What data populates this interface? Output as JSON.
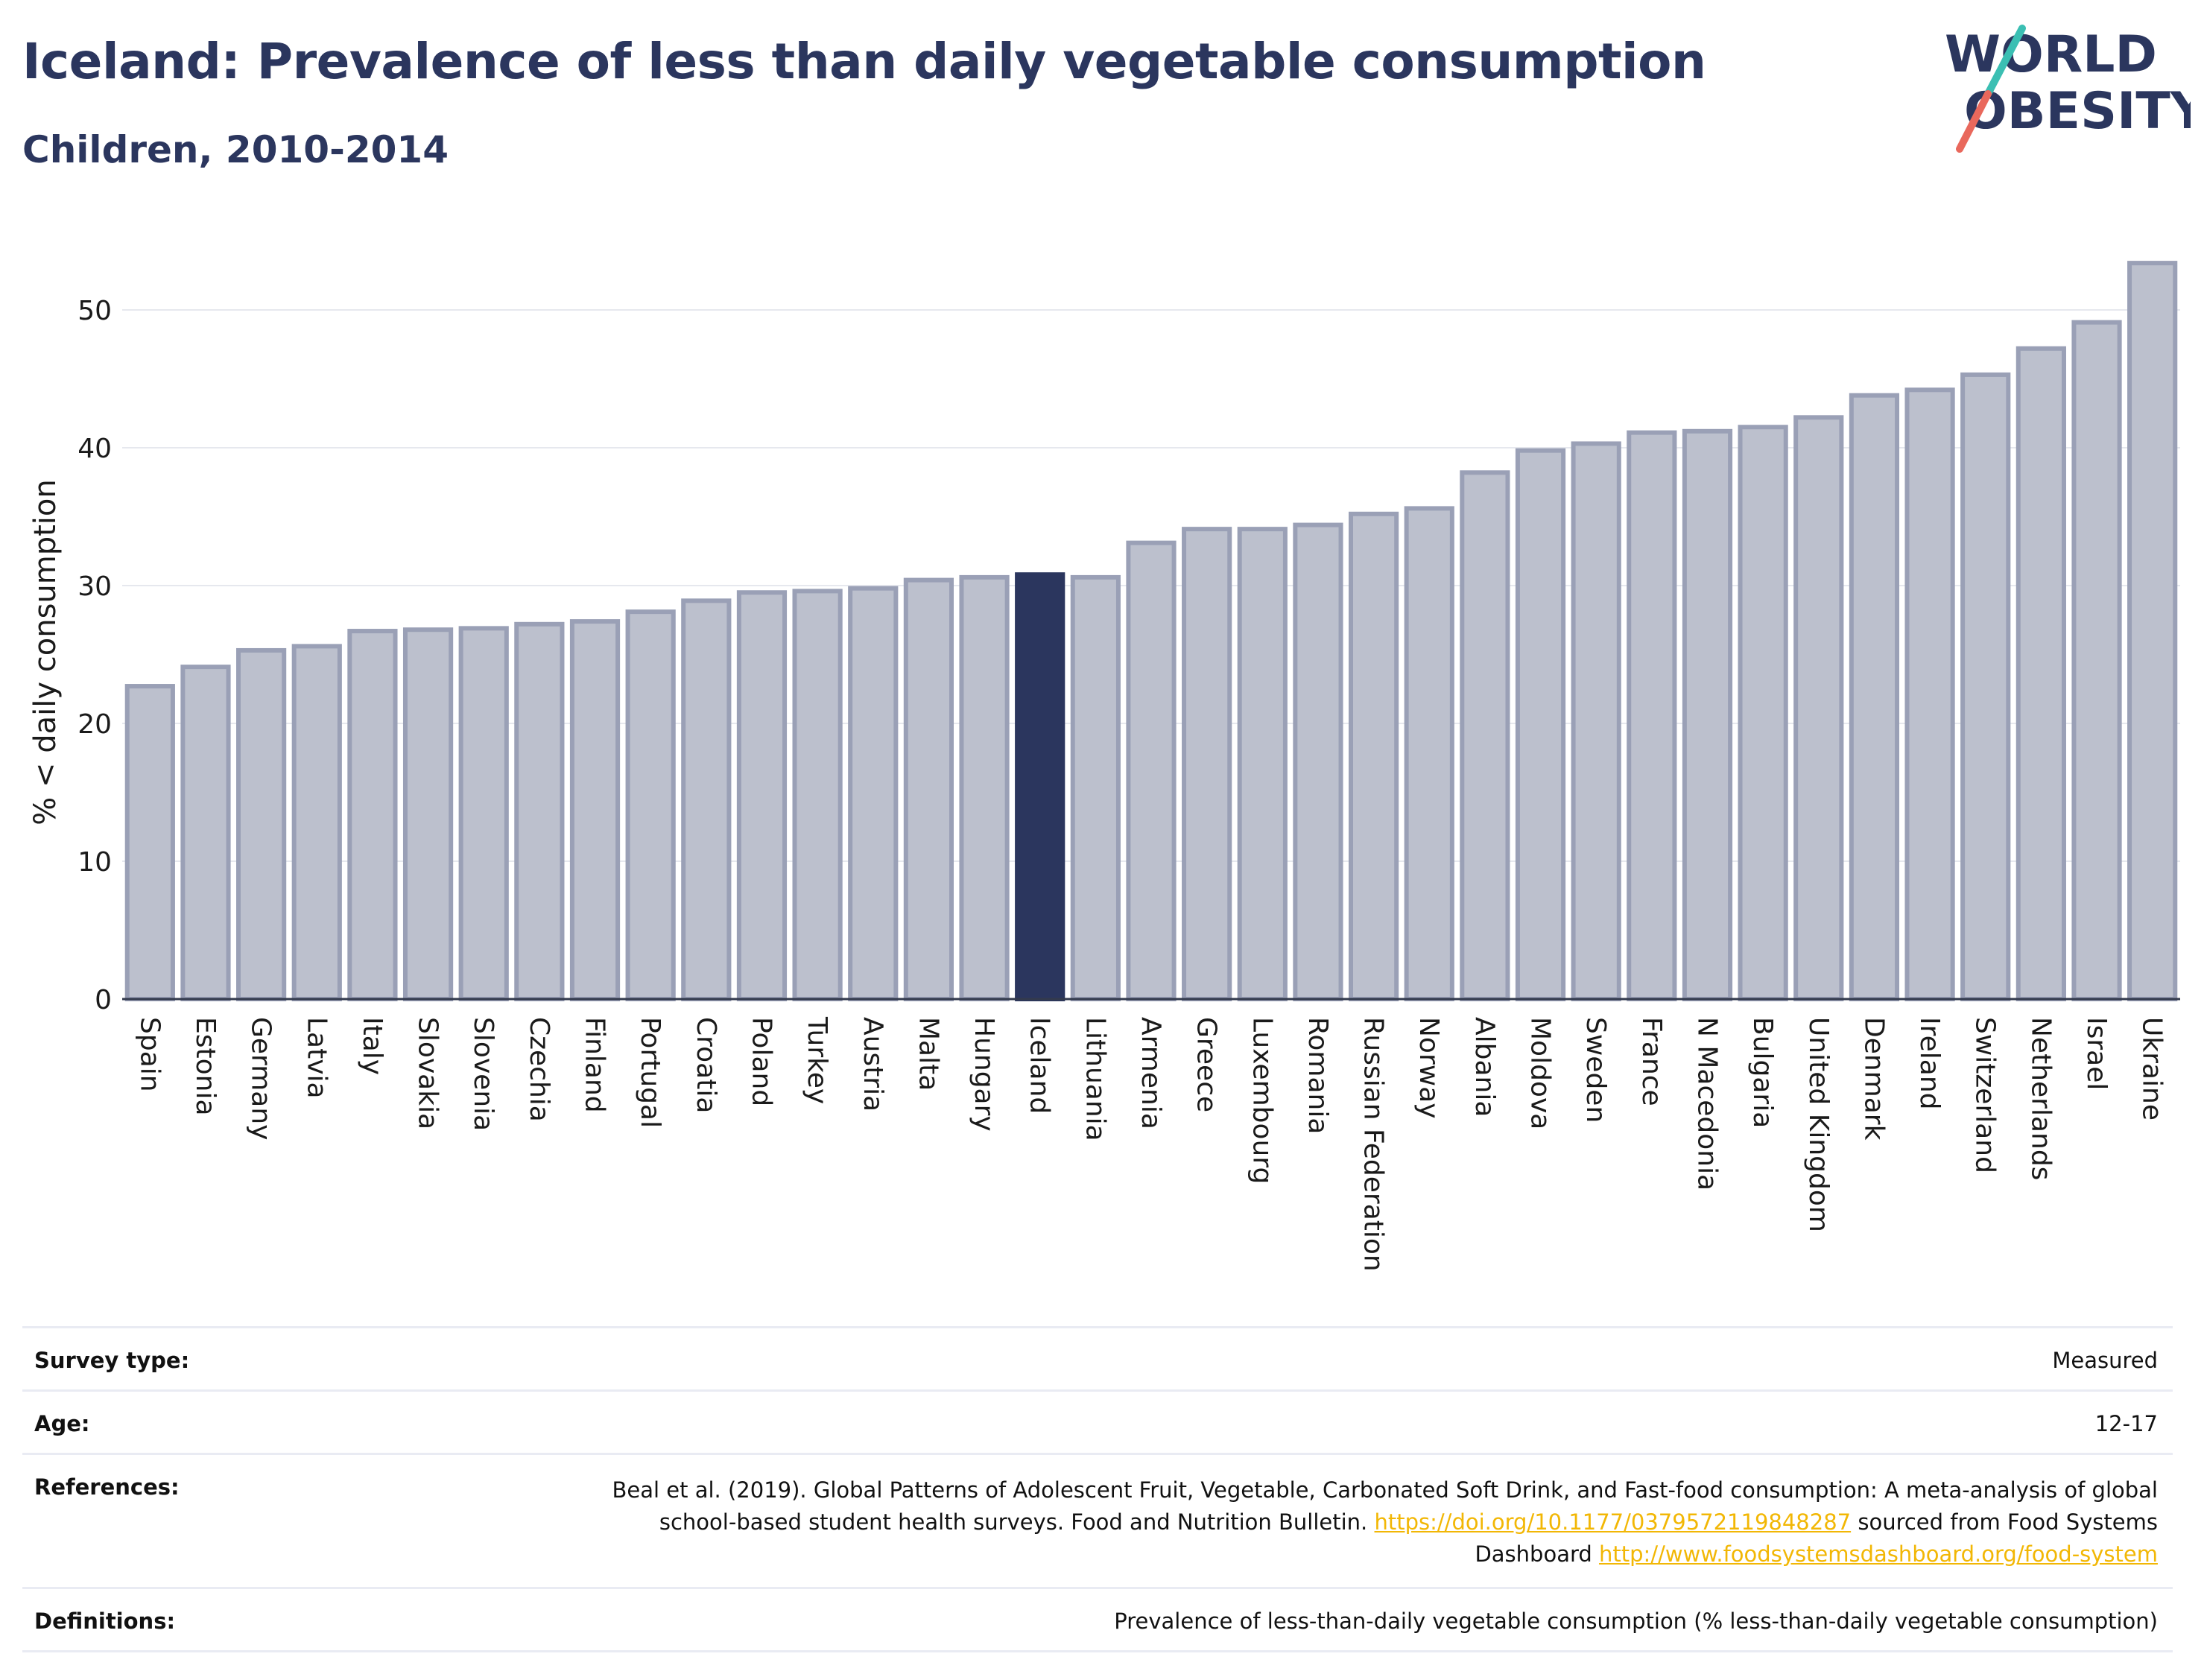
{
  "header": {
    "title": "Iceland: Prevalence of less than daily vegetable consumption",
    "subtitle": "Children, 2010-2014"
  },
  "logo": {
    "line1": "WORLD",
    "line2": "OBESITY",
    "slash_color_top": "#3bbfb3",
    "slash_color_bottom": "#e9685c"
  },
  "colors": {
    "bar": "#bcc0cd",
    "bar_stroke": "#9aa0b6",
    "highlight": "#2b365e",
    "grid": "#e6e8ee",
    "link": "#f2b705"
  },
  "chart_data": {
    "type": "bar",
    "ylabel": "% < daily consumption",
    "ylim": [
      0,
      54
    ],
    "yticks": [
      0,
      10,
      20,
      30,
      40,
      50
    ],
    "highlight": "Iceland",
    "categories": [
      "Spain",
      "Estonia",
      "Germany",
      "Latvia",
      "Italy",
      "Slovakia",
      "Slovenia",
      "Czechia",
      "Finland",
      "Portugal",
      "Croatia",
      "Poland",
      "Turkey",
      "Austria",
      "Malta",
      "Hungary",
      "Iceland",
      "Lithuania",
      "Armenia",
      "Greece",
      "Luxembourg",
      "Romania",
      "Russian Federation",
      "Norway",
      "Albania",
      "Moldova",
      "Sweden",
      "France",
      "N Macedonia",
      "Bulgaria",
      "United Kingdom",
      "Denmark",
      "Ireland",
      "Switzerland",
      "Netherlands",
      "Israel",
      "Ukraine"
    ],
    "values": [
      22.7,
      24.1,
      25.3,
      25.6,
      26.7,
      26.8,
      26.9,
      27.2,
      27.4,
      28.1,
      28.9,
      29.5,
      29.6,
      29.8,
      30.4,
      30.6,
      30.8,
      30.6,
      33.1,
      34.1,
      34.1,
      34.4,
      35.2,
      35.6,
      38.2,
      39.8,
      40.3,
      41.1,
      41.2,
      41.5,
      42.2,
      43.8,
      44.2,
      45.3,
      47.2,
      49.1,
      53.4
    ]
  },
  "info": {
    "survey_type": {
      "label": "Survey type:",
      "value": "Measured"
    },
    "age": {
      "label": "Age:",
      "value": "12-17"
    },
    "references": {
      "label": "References:",
      "text1": "Beal et al. (2019). Global Patterns of Adolescent Fruit, Vegetable, Carbonated Soft Drink, and Fast-food consumption: A meta-analysis of global school-based student health surveys. Food and Nutrition Bulletin.",
      "link1": "https://doi.org/10.1177/0379572119848287",
      "text2": "sourced from Food Systems Dashboard",
      "link2": "http://www.foodsystemsdashboard.org/food-system"
    },
    "definitions": {
      "label": "Definitions:",
      "value": "Prevalence of less-than-daily vegetable consumption (% less-than-daily vegetable consumption)"
    }
  }
}
